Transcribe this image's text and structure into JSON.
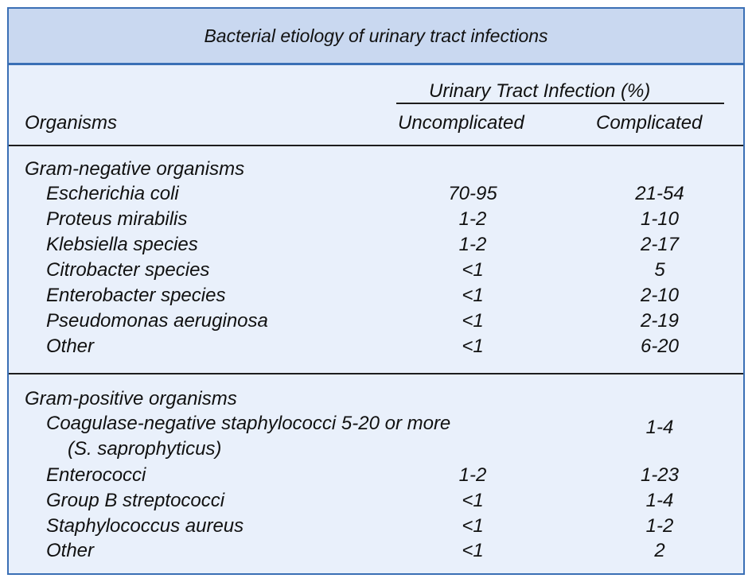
{
  "title": "Bacterial etiology of urinary tract infections",
  "header": {
    "group": "Urinary Tract Infection (%)",
    "col_organisms": "Organisms",
    "col_uncomplicated": "Uncomplicated",
    "col_complicated": "Complicated"
  },
  "gram_negative": {
    "heading": "Gram-negative organisms",
    "rows": [
      {
        "organism": "Escherichia coli",
        "uncomplicated": "70-95",
        "complicated": "21-54"
      },
      {
        "organism": "Proteus mirabilis",
        "uncomplicated": "1-2",
        "complicated": "1-10"
      },
      {
        "organism": "Klebsiella species",
        "uncomplicated": "1-2",
        "complicated": "2-17"
      },
      {
        "organism": "Citrobacter species",
        "uncomplicated": "<1",
        "complicated": "5"
      },
      {
        "organism": "Enterobacter species",
        "uncomplicated": "<1",
        "complicated": "2-10"
      },
      {
        "organism": "Pseudomonas aeruginosa",
        "uncomplicated": "<1",
        "complicated": "2-19"
      },
      {
        "organism": "Other",
        "uncomplicated": "<1",
        "complicated": "6-20"
      }
    ]
  },
  "gram_positive": {
    "heading": "Gram-positive organisms",
    "cns": {
      "line1": "Coagulase-negative staphylococci 5-20 or more",
      "line2": "(S. saprophyticus)",
      "complicated": "1-4"
    },
    "rows": [
      {
        "organism": "Enterococci",
        "uncomplicated": "1-2",
        "complicated": "1-23"
      },
      {
        "organism": "Group B streptococci",
        "uncomplicated": "<1",
        "complicated": "1-4"
      },
      {
        "organism": "Staphylococcus aureus",
        "uncomplicated": "<1",
        "complicated": "1-2"
      },
      {
        "organism": "Other",
        "uncomplicated": "<1",
        "complicated": "2"
      }
    ]
  }
}
